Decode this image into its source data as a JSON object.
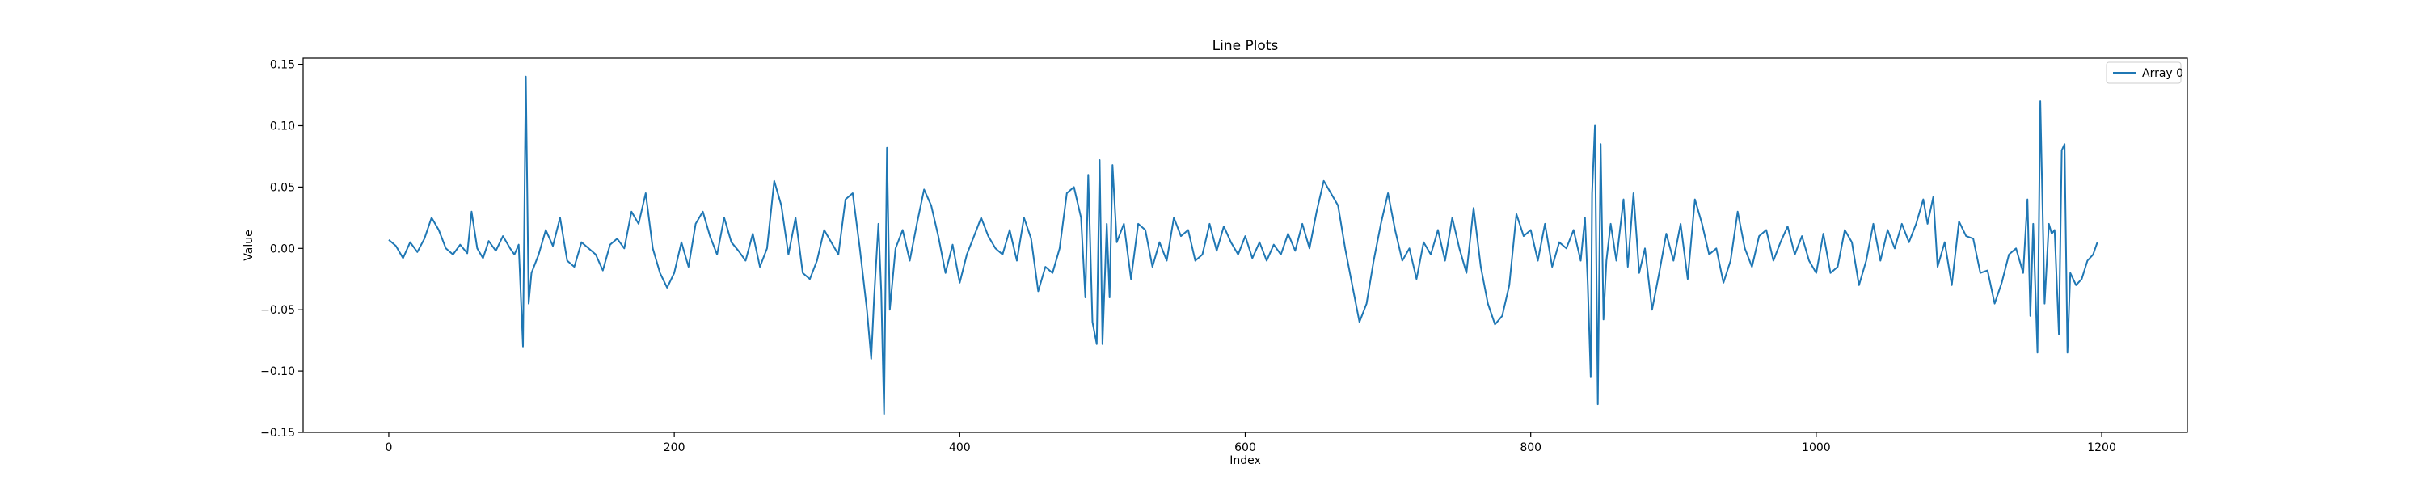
{
  "chart_data": {
    "type": "line",
    "title": "Line Plots",
    "xlabel": "Index",
    "ylabel": "Value",
    "xlim": [
      -60,
      1260
    ],
    "ylim": [
      -0.15,
      0.155
    ],
    "xticks": [
      0,
      200,
      400,
      600,
      800,
      1000,
      1200
    ],
    "yticks": [
      -0.15,
      -0.1,
      -0.05,
      0.0,
      0.05,
      0.1,
      0.15
    ],
    "xtick_labels": [
      "0",
      "200",
      "400",
      "600",
      "800",
      "1000",
      "1200"
    ],
    "ytick_labels": [
      "−0.15",
      "−0.10",
      "−0.05",
      "0.00",
      "0.05",
      "0.10",
      "0.15"
    ],
    "grid": false,
    "legend_position": "upper right",
    "series": [
      {
        "name": "Array 0",
        "color": "#1f77b4",
        "points": [
          [
            0,
            0.007
          ],
          [
            5,
            0.002
          ],
          [
            10,
            -0.008
          ],
          [
            15,
            0.005
          ],
          [
            20,
            -0.003
          ],
          [
            25,
            0.008
          ],
          [
            30,
            0.025
          ],
          [
            35,
            0.015
          ],
          [
            40,
            0.0
          ],
          [
            45,
            -0.005
          ],
          [
            50,
            0.003
          ],
          [
            55,
            -0.004
          ],
          [
            58,
            0.03
          ],
          [
            62,
            0.0
          ],
          [
            66,
            -0.008
          ],
          [
            70,
            0.006
          ],
          [
            75,
            -0.002
          ],
          [
            80,
            0.01
          ],
          [
            85,
            0.0
          ],
          [
            88,
            -0.005
          ],
          [
            91,
            0.003
          ],
          [
            94,
            -0.08
          ],
          [
            96,
            0.14
          ],
          [
            98,
            -0.045
          ],
          [
            100,
            -0.02
          ],
          [
            105,
            -0.005
          ],
          [
            110,
            0.015
          ],
          [
            115,
            0.002
          ],
          [
            120,
            0.025
          ],
          [
            125,
            -0.01
          ],
          [
            130,
            -0.015
          ],
          [
            135,
            0.005
          ],
          [
            140,
            0.0
          ],
          [
            145,
            -0.005
          ],
          [
            150,
            -0.018
          ],
          [
            155,
            0.003
          ],
          [
            160,
            0.008
          ],
          [
            165,
            0.0
          ],
          [
            170,
            0.03
          ],
          [
            175,
            0.02
          ],
          [
            180,
            0.045
          ],
          [
            185,
            0.0
          ],
          [
            190,
            -0.02
          ],
          [
            195,
            -0.032
          ],
          [
            200,
            -0.02
          ],
          [
            205,
            0.005
          ],
          [
            210,
            -0.015
          ],
          [
            215,
            0.02
          ],
          [
            220,
            0.03
          ],
          [
            225,
            0.01
          ],
          [
            230,
            -0.005
          ],
          [
            235,
            0.025
          ],
          [
            240,
            0.005
          ],
          [
            245,
            -0.002
          ],
          [
            250,
            -0.01
          ],
          [
            255,
            0.012
          ],
          [
            260,
            -0.015
          ],
          [
            265,
            0.0
          ],
          [
            270,
            0.055
          ],
          [
            275,
            0.035
          ],
          [
            280,
            -0.005
          ],
          [
            285,
            0.025
          ],
          [
            290,
            -0.02
          ],
          [
            295,
            -0.025
          ],
          [
            300,
            -0.01
          ],
          [
            305,
            0.015
          ],
          [
            310,
            0.005
          ],
          [
            315,
            -0.005
          ],
          [
            320,
            0.04
          ],
          [
            325,
            0.045
          ],
          [
            330,
            0.0
          ],
          [
            335,
            -0.05
          ],
          [
            338,
            -0.09
          ],
          [
            340,
            -0.04
          ],
          [
            343,
            0.02
          ],
          [
            345,
            -0.035
          ],
          [
            347,
            -0.135
          ],
          [
            349,
            0.082
          ],
          [
            351,
            -0.05
          ],
          [
            355,
            0.0
          ],
          [
            360,
            0.015
          ],
          [
            365,
            -0.01
          ],
          [
            370,
            0.02
          ],
          [
            375,
            0.048
          ],
          [
            380,
            0.035
          ],
          [
            385,
            0.01
          ],
          [
            390,
            -0.02
          ],
          [
            395,
            0.003
          ],
          [
            400,
            -0.028
          ],
          [
            405,
            -0.005
          ],
          [
            410,
            0.01
          ],
          [
            415,
            0.025
          ],
          [
            420,
            0.01
          ],
          [
            425,
            0.0
          ],
          [
            430,
            -0.005
          ],
          [
            435,
            0.015
          ],
          [
            440,
            -0.01
          ],
          [
            445,
            0.025
          ],
          [
            450,
            0.008
          ],
          [
            455,
            -0.035
          ],
          [
            460,
            -0.015
          ],
          [
            465,
            -0.02
          ],
          [
            470,
            0.0
          ],
          [
            475,
            0.045
          ],
          [
            480,
            0.05
          ],
          [
            485,
            0.025
          ],
          [
            488,
            -0.04
          ],
          [
            490,
            0.06
          ],
          [
            493,
            -0.06
          ],
          [
            496,
            -0.078
          ],
          [
            498,
            0.072
          ],
          [
            500,
            -0.078
          ],
          [
            503,
            0.02
          ],
          [
            505,
            -0.04
          ],
          [
            507,
            0.068
          ],
          [
            510,
            0.005
          ],
          [
            515,
            0.02
          ],
          [
            520,
            -0.025
          ],
          [
            525,
            0.02
          ],
          [
            530,
            0.015
          ],
          [
            535,
            -0.015
          ],
          [
            540,
            0.005
          ],
          [
            545,
            -0.01
          ],
          [
            550,
            0.025
          ],
          [
            555,
            0.01
          ],
          [
            560,
            0.015
          ],
          [
            565,
            -0.01
          ],
          [
            570,
            -0.005
          ],
          [
            575,
            0.02
          ],
          [
            580,
            -0.002
          ],
          [
            585,
            0.018
          ],
          [
            590,
            0.005
          ],
          [
            595,
            -0.005
          ],
          [
            600,
            0.01
          ],
          [
            605,
            -0.008
          ],
          [
            610,
            0.005
          ],
          [
            615,
            -0.01
          ],
          [
            620,
            0.003
          ],
          [
            625,
            -0.005
          ],
          [
            630,
            0.012
          ],
          [
            635,
            -0.002
          ],
          [
            640,
            0.02
          ],
          [
            645,
            0.0
          ],
          [
            650,
            0.03
          ],
          [
            655,
            0.055
          ],
          [
            660,
            0.045
          ],
          [
            665,
            0.035
          ],
          [
            670,
            0.0
          ],
          [
            675,
            -0.03
          ],
          [
            680,
            -0.06
          ],
          [
            685,
            -0.045
          ],
          [
            690,
            -0.01
          ],
          [
            695,
            0.02
          ],
          [
            700,
            0.045
          ],
          [
            705,
            0.015
          ],
          [
            710,
            -0.01
          ],
          [
            715,
            0.0
          ],
          [
            720,
            -0.025
          ],
          [
            725,
            0.005
          ],
          [
            730,
            -0.005
          ],
          [
            735,
            0.015
          ],
          [
            740,
            -0.01
          ],
          [
            745,
            0.025
          ],
          [
            750,
            0.0
          ],
          [
            755,
            -0.02
          ],
          [
            760,
            0.033
          ],
          [
            765,
            -0.015
          ],
          [
            770,
            -0.045
          ],
          [
            775,
            -0.062
          ],
          [
            780,
            -0.055
          ],
          [
            785,
            -0.03
          ],
          [
            790,
            0.028
          ],
          [
            795,
            0.01
          ],
          [
            800,
            0.015
          ],
          [
            805,
            -0.01
          ],
          [
            810,
            0.02
          ],
          [
            815,
            -0.015
          ],
          [
            820,
            0.005
          ],
          [
            825,
            0.0
          ],
          [
            830,
            0.015
          ],
          [
            835,
            -0.01
          ],
          [
            838,
            0.025
          ],
          [
            840,
            -0.03
          ],
          [
            842,
            -0.105
          ],
          [
            843,
            0.045
          ],
          [
            845,
            0.1
          ],
          [
            847,
            -0.127
          ],
          [
            849,
            0.085
          ],
          [
            851,
            -0.058
          ],
          [
            853,
            -0.01
          ],
          [
            856,
            0.02
          ],
          [
            860,
            -0.01
          ],
          [
            865,
            0.04
          ],
          [
            868,
            -0.015
          ],
          [
            872,
            0.045
          ],
          [
            876,
            -0.02
          ],
          [
            880,
            0.0
          ],
          [
            885,
            -0.05
          ],
          [
            890,
            -0.02
          ],
          [
            895,
            0.012
          ],
          [
            900,
            -0.01
          ],
          [
            905,
            0.02
          ],
          [
            910,
            -0.025
          ],
          [
            915,
            0.04
          ],
          [
            920,
            0.02
          ],
          [
            925,
            -0.005
          ],
          [
            930,
            0.0
          ],
          [
            935,
            -0.028
          ],
          [
            940,
            -0.01
          ],
          [
            945,
            0.03
          ],
          [
            950,
            0.0
          ],
          [
            955,
            -0.015
          ],
          [
            960,
            0.01
          ],
          [
            965,
            0.015
          ],
          [
            970,
            -0.01
          ],
          [
            975,
            0.005
          ],
          [
            980,
            0.018
          ],
          [
            985,
            -0.005
          ],
          [
            990,
            0.01
          ],
          [
            995,
            -0.01
          ],
          [
            1000,
            -0.02
          ],
          [
            1005,
            0.012
          ],
          [
            1010,
            -0.02
          ],
          [
            1015,
            -0.015
          ],
          [
            1020,
            0.015
          ],
          [
            1025,
            0.005
          ],
          [
            1030,
            -0.03
          ],
          [
            1035,
            -0.01
          ],
          [
            1040,
            0.02
          ],
          [
            1045,
            -0.01
          ],
          [
            1050,
            0.015
          ],
          [
            1055,
            0.0
          ],
          [
            1060,
            0.02
          ],
          [
            1065,
            0.005
          ],
          [
            1070,
            0.02
          ],
          [
            1075,
            0.04
          ],
          [
            1078,
            0.02
          ],
          [
            1082,
            0.042
          ],
          [
            1085,
            -0.015
          ],
          [
            1090,
            0.005
          ],
          [
            1095,
            -0.03
          ],
          [
            1100,
            0.022
          ],
          [
            1105,
            0.01
          ],
          [
            1110,
            0.008
          ],
          [
            1115,
            -0.02
          ],
          [
            1120,
            -0.018
          ],
          [
            1125,
            -0.045
          ],
          [
            1130,
            -0.028
          ],
          [
            1135,
            -0.005
          ],
          [
            1140,
            0.0
          ],
          [
            1145,
            -0.02
          ],
          [
            1148,
            0.04
          ],
          [
            1150,
            -0.055
          ],
          [
            1152,
            0.02
          ],
          [
            1155,
            -0.085
          ],
          [
            1157,
            0.12
          ],
          [
            1160,
            -0.045
          ],
          [
            1163,
            0.02
          ],
          [
            1165,
            0.012
          ],
          [
            1167,
            0.015
          ],
          [
            1170,
            -0.07
          ],
          [
            1172,
            0.08
          ],
          [
            1174,
            0.085
          ],
          [
            1176,
            -0.085
          ],
          [
            1178,
            -0.02
          ],
          [
            1182,
            -0.03
          ],
          [
            1186,
            -0.025
          ],
          [
            1190,
            -0.01
          ],
          [
            1194,
            -0.005
          ],
          [
            1197,
            0.005
          ]
        ]
      }
    ]
  }
}
